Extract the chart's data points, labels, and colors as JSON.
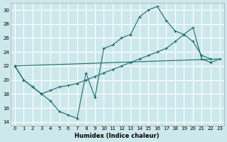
{
  "xlabel": "Humidex (Indice chaleur)",
  "xlim": [
    -0.5,
    23.5
  ],
  "ylim": [
    13.5,
    31
  ],
  "yticks": [
    14,
    16,
    18,
    20,
    22,
    24,
    26,
    28,
    30
  ],
  "xticks": [
    0,
    1,
    2,
    3,
    4,
    5,
    6,
    7,
    8,
    9,
    10,
    11,
    12,
    13,
    14,
    15,
    16,
    17,
    18,
    19,
    20,
    21,
    22,
    23
  ],
  "bg_color": "#cde8ec",
  "line_color": "#1a6b6b",
  "grid_color": "#ffffff",
  "line1_x": [
    0,
    1,
    2,
    3,
    4,
    5,
    6,
    7,
    8,
    9,
    10,
    11,
    12,
    13,
    14,
    15,
    16,
    17,
    18,
    19,
    20,
    21,
    22
  ],
  "line1_y": [
    22.0,
    20.0,
    19.0,
    18.0,
    17.0,
    15.5,
    15.0,
    14.5,
    21.0,
    17.5,
    24.5,
    25.0,
    26.0,
    26.5,
    29.0,
    30.0,
    30.5,
    28.5,
    27.0,
    26.5,
    25.5,
    23.5,
    23.0
  ],
  "line2_x": [
    0,
    1,
    2,
    3,
    4,
    5,
    6,
    7,
    8,
    9,
    10,
    11,
    12,
    13,
    14,
    15,
    16,
    17,
    18,
    19,
    20,
    21,
    22,
    23
  ],
  "line2_y": [
    22.0,
    20.0,
    19.0,
    18.0,
    18.5,
    19.0,
    19.2,
    19.5,
    20.0,
    20.5,
    21.0,
    21.5,
    22.0,
    22.5,
    23.0,
    23.5,
    24.0,
    24.5,
    25.5,
    26.5,
    27.5,
    23.0,
    22.5,
    23.0
  ],
  "line3_x": [
    0,
    23
  ],
  "line3_y": [
    22.0,
    23.0
  ]
}
